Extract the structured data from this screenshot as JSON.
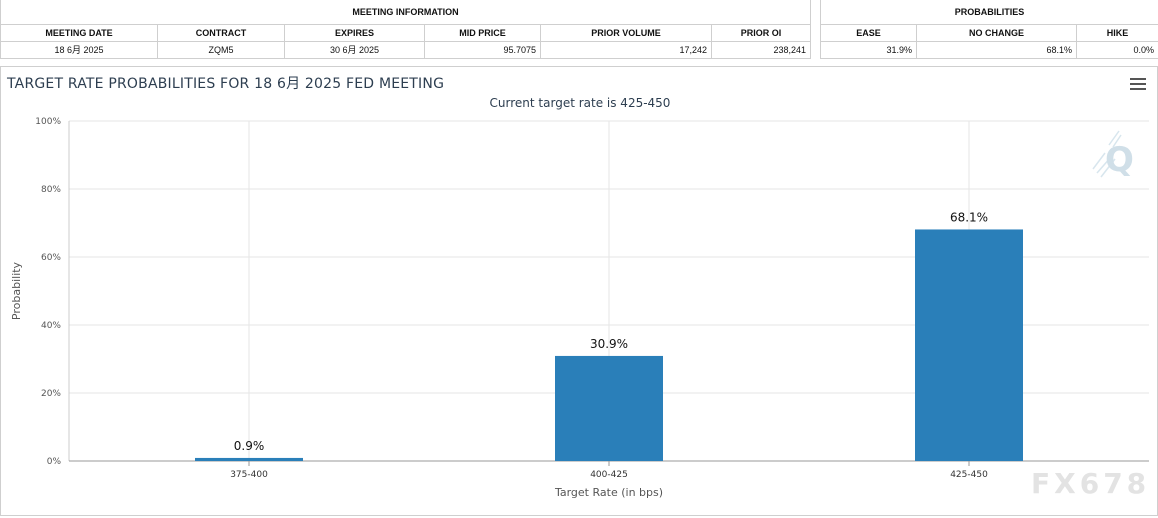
{
  "meeting_info": {
    "group_title": "MEETING INFORMATION",
    "headers": [
      "MEETING DATE",
      "CONTRACT",
      "EXPIRES",
      "MID PRICE",
      "PRIOR VOLUME",
      "PRIOR OI"
    ],
    "row": {
      "meeting_date": "18 6月 2025",
      "contract": "ZQM5",
      "expires": "30 6月 2025",
      "mid_price": "95.7075",
      "prior_volume": "17,242",
      "prior_oi": "238,241"
    }
  },
  "probabilities": {
    "group_title": "PROBABILITIES",
    "headers": [
      "EASE",
      "NO CHANGE",
      "HIKE"
    ],
    "row": {
      "ease": "31.9%",
      "no_change": "68.1%",
      "hike": "0.0%"
    }
  },
  "colors": {
    "bar": "#2a7fb9",
    "grid": "#e6e6e6",
    "title": "#2d3e50"
  },
  "icons": {
    "menu": "hamburger-menu-icon",
    "logo": "q-logo-icon"
  },
  "watermark": "FX678",
  "chart_data": {
    "type": "bar",
    "title": "TARGET RATE PROBABILITIES FOR 18 6月 2025 FED MEETING",
    "subtitle": "Current target rate is 425-450",
    "xlabel": "Target Rate (in bps)",
    "ylabel": "Probability",
    "categories": [
      "375-400",
      "400-425",
      "425-450"
    ],
    "values": [
      0.9,
      30.9,
      68.1
    ],
    "value_labels": [
      "0.9%",
      "30.9%",
      "68.1%"
    ],
    "ylim": [
      0,
      100
    ],
    "yticks": [
      0,
      20,
      40,
      60,
      80,
      100
    ],
    "ytick_labels": [
      "0%",
      "20%",
      "40%",
      "60%",
      "80%",
      "100%"
    ],
    "grid": true,
    "legend": "none"
  }
}
